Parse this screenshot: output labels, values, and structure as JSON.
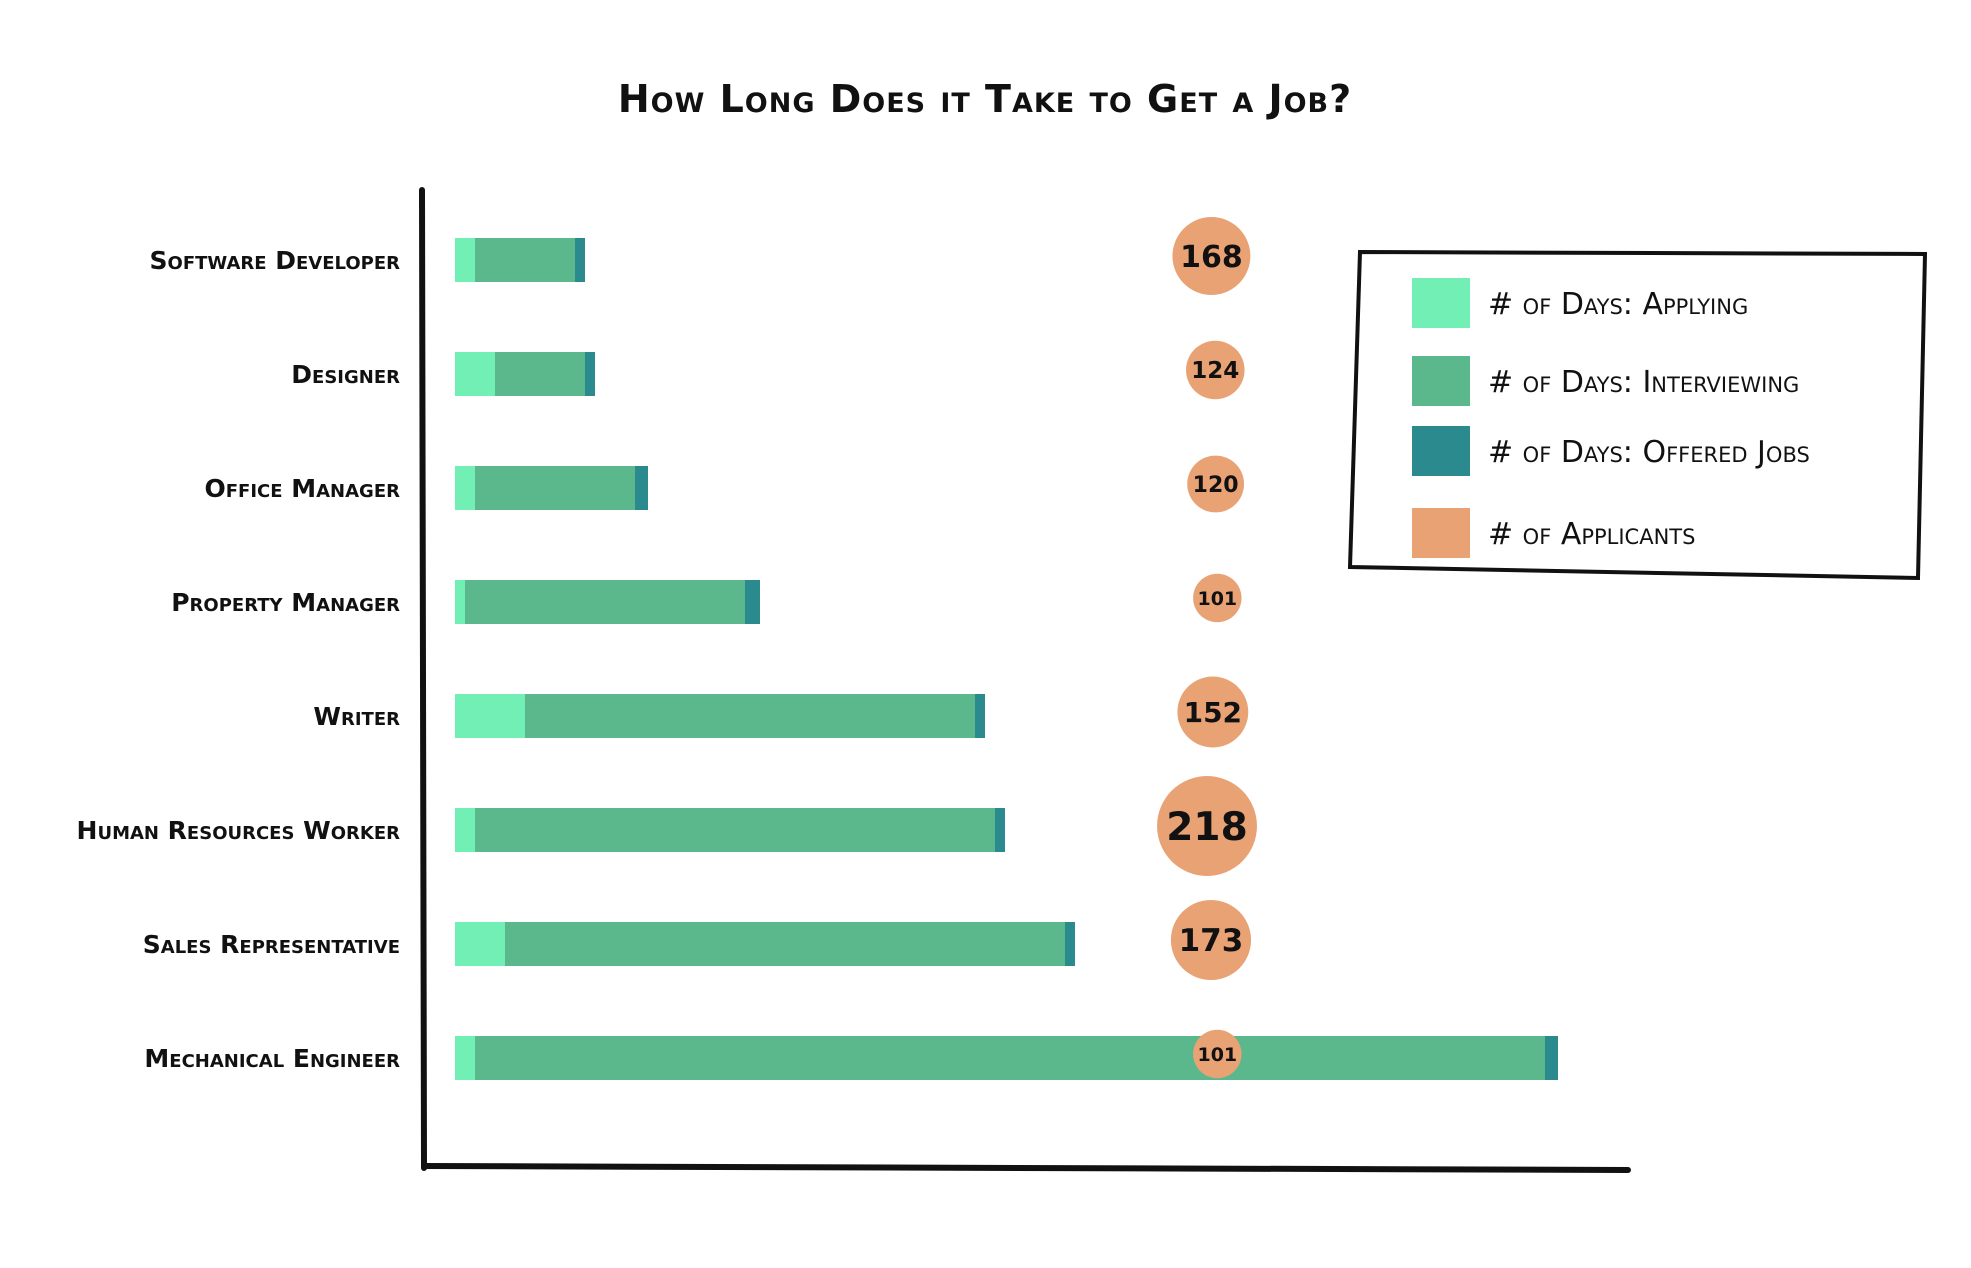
{
  "chart_data": {
    "type": "bar",
    "stacked": true,
    "orientation": "horizontal",
    "title": "How Long Does it Take to Get a Job?",
    "categories": [
      "Software Developer",
      "Designer",
      "Office Manager",
      "Property Manager",
      "Writer",
      "Human Resources Worker",
      "Sales Representative",
      "Mechanical Engineer"
    ],
    "series": [
      {
        "name": "# of Days: Applying",
        "color": "#72efb5",
        "values": [
          2,
          4,
          2,
          1,
          7,
          2,
          5,
          2
        ]
      },
      {
        "name": "# of Days: Interviewing",
        "color": "#5bb88c",
        "values": [
          10,
          9,
          16,
          28,
          45,
          52,
          56,
          107
        ]
      },
      {
        "name": "# of Days: Offered Jobs",
        "color": "#2a8a8e",
        "values": [
          1,
          1,
          1.3,
          1.5,
          1,
          1,
          1,
          1.3
        ]
      }
    ],
    "bubbles": {
      "name": "# of Applicants",
      "color": "#e8a274",
      "values": [
        168,
        124,
        120,
        101,
        152,
        218,
        173,
        101
      ]
    },
    "xlim": [
      0,
      115
    ],
    "grid": false,
    "legend_position": "top-right"
  }
}
